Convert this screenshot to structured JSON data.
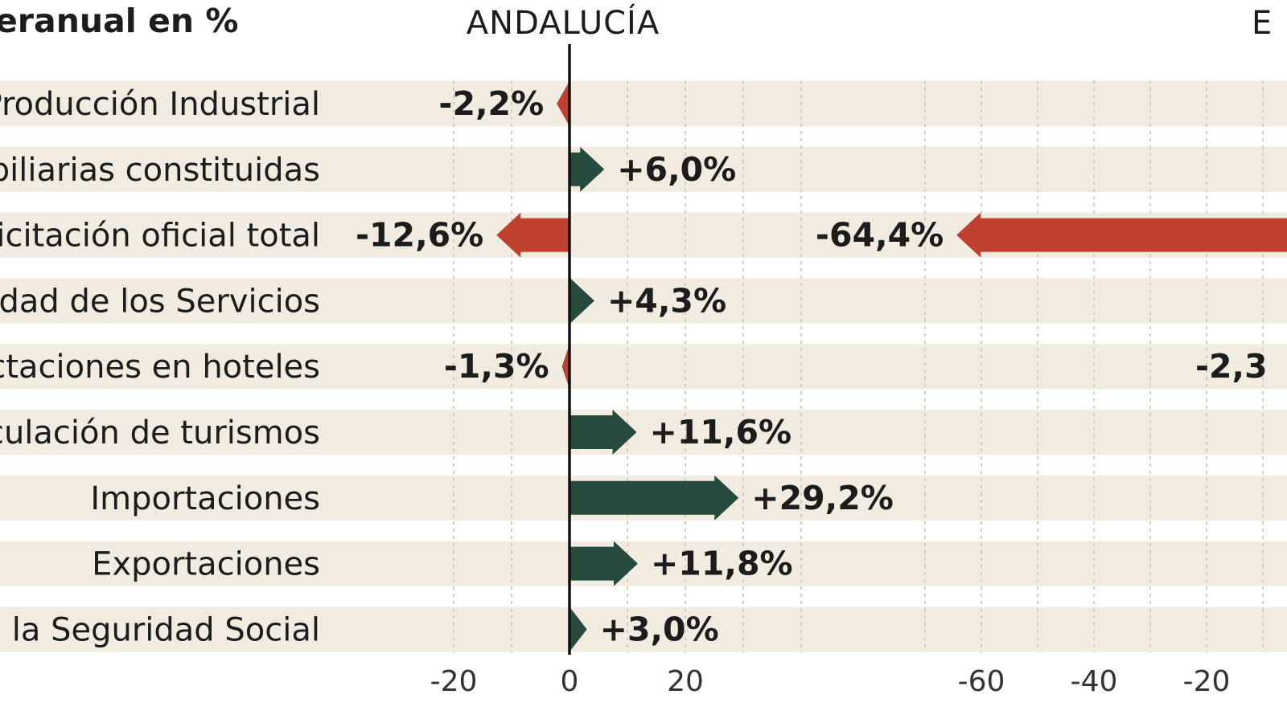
{
  "title": "Interanual en %",
  "colors": {
    "stripe": "#f1ebe0",
    "positive": "#274a3e",
    "negative": "#c0402f",
    "axis": "#111111",
    "grid": "#c9c3b8",
    "text": "#1c1c1c"
  },
  "chart_data": [
    {
      "type": "bar",
      "panel_title": "ANDALUCÍA",
      "categories": [
        "Índice de Producción Industrial",
        "Hipotecas sobre viviendas inmobiliarias constituidas",
        "Licitación oficial total",
        "Índice de cifra de negocios de la actividad de los Servicios",
        "Pernoctaciones en hoteles",
        "Matriculación de turismos",
        "Importaciones",
        "Exportaciones",
        "Afiliados a la Seguridad Social"
      ],
      "values": [
        -2.2,
        6.0,
        -12.6,
        4.3,
        -1.3,
        11.6,
        29.2,
        11.8,
        3.0
      ],
      "value_labels": [
        "-2,2%",
        "+6,0%",
        "-12,6%",
        "+4,3%",
        "-1,3%",
        "+11,6%",
        "+29,2%",
        "+11,8%",
        "+3,0%"
      ],
      "xlim": [
        -30,
        40
      ],
      "xticks": [
        -20,
        0,
        20
      ],
      "xtick_labels": [
        "-20",
        "0",
        "20"
      ],
      "grid": true
    },
    {
      "type": "bar",
      "panel_title": "E",
      "categories": [
        "Licitación oficial total",
        "Pernoctaciones en hoteles"
      ],
      "values": [
        -64.4,
        -2.3
      ],
      "value_labels": [
        "-64,4%",
        "-2,3"
      ],
      "xlim": [
        -80,
        0
      ],
      "xticks": [
        -60,
        -40,
        -20
      ],
      "xtick_labels": [
        "-60",
        "-40",
        "-20"
      ],
      "grid": true
    }
  ],
  "label_visible": [
    "Producción Industrial",
    "biliarias constituidas",
    "Licitación oficial total",
    "vidad de los Servicios",
    "octaciones en hoteles",
    "culación de turismos",
    "Importaciones",
    "Exportaciones",
    "a la Seguridad Social"
  ],
  "title_visible": "eranual en %"
}
